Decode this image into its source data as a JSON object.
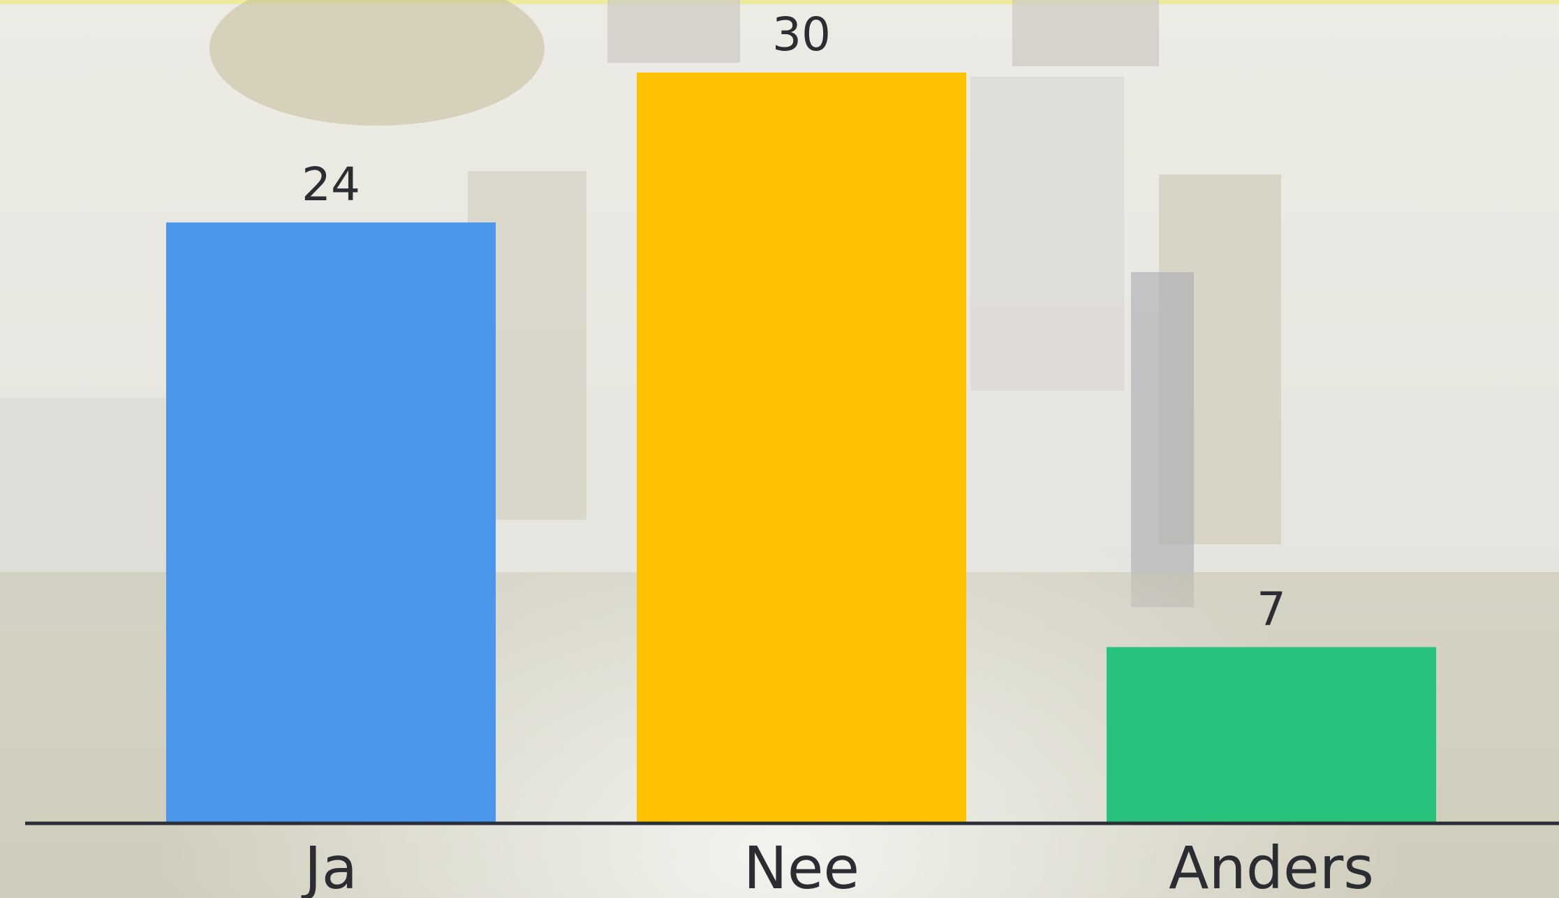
{
  "chart_data": {
    "type": "bar",
    "categories": [
      "Ja",
      "Nee",
      "Anders"
    ],
    "values": [
      24,
      30,
      7
    ],
    "colors": [
      "#4a96ec",
      "#fec200",
      "#26c27b"
    ]
  }
}
